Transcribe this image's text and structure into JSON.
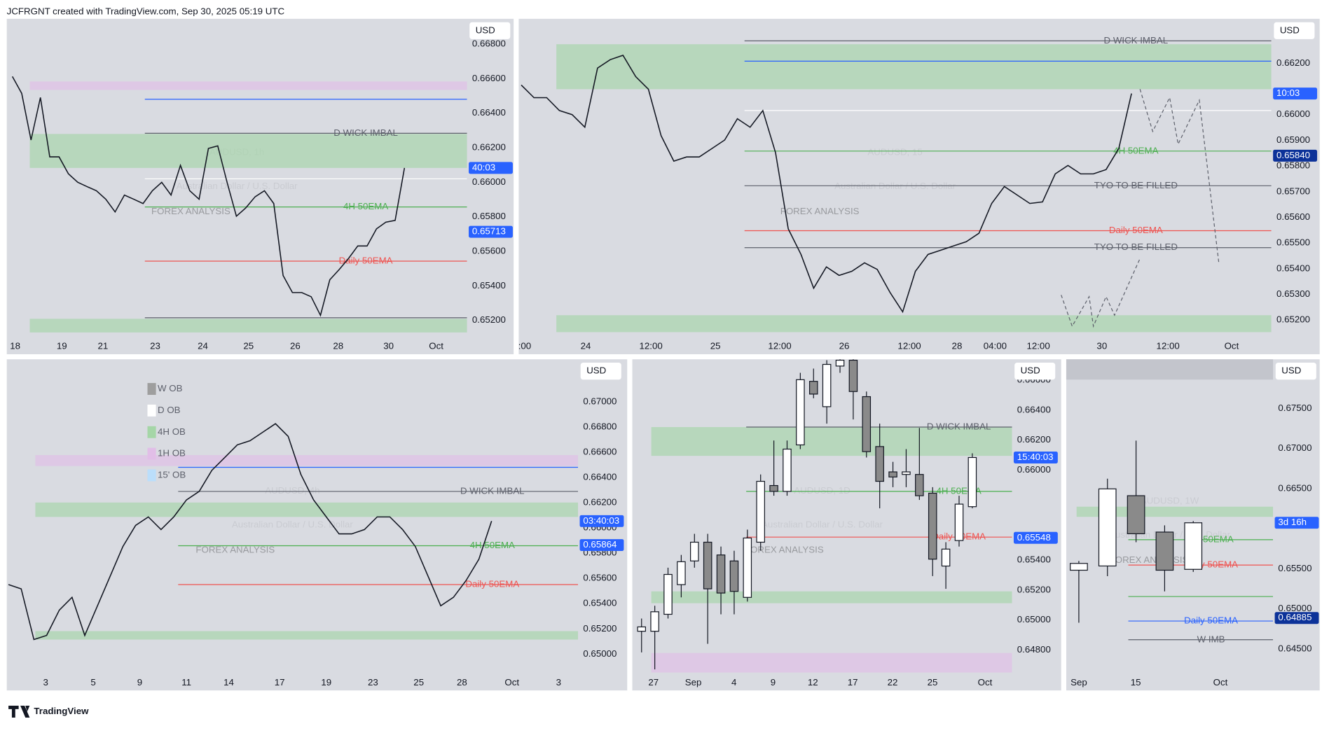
{
  "header": "JCFRGNT created with TradingView.com, Sep 30, 2025 05:19 UTC",
  "footer_brand": "TradingView",
  "chart_data": [
    {
      "type": "line",
      "watermark": "AUDUSD, 1h",
      "subtitle": "Australian Dollar / U.S. Dollar",
      "brand": "FOREX ANALYSIS",
      "currency": "USD",
      "color": "#131722",
      "xlim": [
        -0.6,
        48.7
      ],
      "ylim": [
        0.65102,
        0.66947
      ],
      "xticks": [
        {
          "value": 0.3,
          "label": "18"
        },
        {
          "value": 5.3,
          "label": "19"
        },
        {
          "value": 9.7,
          "label": "21"
        },
        {
          "value": 15.3,
          "label": "23"
        },
        {
          "value": 20.4,
          "label": "24"
        },
        {
          "value": 25.3,
          "label": "25"
        },
        {
          "value": 30.3,
          "label": "26"
        },
        {
          "value": 34.9,
          "label": "28"
        },
        {
          "value": 40.3,
          "label": "30"
        },
        {
          "value": 45.4,
          "label": "Oct"
        }
      ],
      "yticks": [
        {
          "value": 0.668,
          "label": "0.66800"
        },
        {
          "value": 0.666,
          "label": "0.66600"
        },
        {
          "value": 0.664,
          "label": "0.66400"
        },
        {
          "value": 0.662,
          "label": "0.66200"
        },
        {
          "value": 0.66,
          "label": "0.66000"
        },
        {
          "value": 0.658,
          "label": "0.65800"
        },
        {
          "value": 0.656,
          "label": "0.65600"
        },
        {
          "value": 0.654,
          "label": "0.65400"
        },
        {
          "value": 0.652,
          "label": "0.65200"
        }
      ],
      "values": [
        0.66613,
        0.66515,
        0.66245,
        0.66491,
        0.66147,
        0.66147,
        0.66049,
        0.66,
        0.65975,
        0.65951,
        0.65902,
        0.65828,
        0.65926,
        0.65902,
        0.65877,
        0.65951,
        0.66,
        0.65926,
        0.66098,
        0.65951,
        0.65902,
        0.66196,
        0.66211,
        0.66,
        0.65803,
        0.65852,
        0.65916,
        0.65951,
        0.65877,
        0.6546,
        0.65361,
        0.65361,
        0.65337,
        0.65229,
        0.65435,
        0.65494,
        0.65558,
        0.65631,
        0.65631,
        0.6573,
        0.65769,
        0.65779,
        0.66083
      ],
      "zones": [
        {
          "range": [
            0.66535,
            0.66584
          ],
          "color": "#e1bee7"
        },
        {
          "range": [
            0.66083,
            0.6628
          ],
          "color": "#a5d6a7"
        },
        {
          "range": [
            0.6513,
            0.65209
          ],
          "color": "#a5d6a7"
        }
      ],
      "levels": [
        {
          "label": "D WICK IMBAL",
          "value": 0.66284,
          "color": "#5d606b"
        },
        {
          "label": "4H 50EMA",
          "value": 0.65857,
          "color": "#4caf50"
        },
        {
          "label": "Daily 50EMA",
          "value": 0.65543,
          "color": "#ef5350"
        },
        {
          "value": 0.66481,
          "color": "#2962ff"
        },
        {
          "value": 0.6602,
          "color": "#ffffff"
        },
        {
          "value": 0.65215,
          "color": "#5d606b"
        }
      ],
      "price_labels": [
        {
          "value": 0.65713,
          "label": "0.65713",
          "color": "#2962ff"
        }
      ],
      "countdown": "40:03"
    },
    {
      "type": "line",
      "watermark": "AUDUSD, 15",
      "subtitle": "Australian Dollar / U.S. Dollar",
      "brand": "FOREX ANALYSIS",
      "currency": "USD",
      "color": "#131722",
      "xlim": [
        -0.2,
        59
      ],
      "ylim": [
        0.65133,
        0.66373
      ],
      "xticks": [
        {
          "value": 0.27,
          "label": ":00"
        },
        {
          "value": 5.07,
          "label": "24"
        },
        {
          "value": 10.2,
          "label": "12:00"
        },
        {
          "value": 15.27,
          "label": "25"
        },
        {
          "value": 20.33,
          "label": "12:00"
        },
        {
          "value": 25.4,
          "label": "26"
        },
        {
          "value": 30.53,
          "label": "12:00"
        },
        {
          "value": 34.27,
          "label": "28"
        },
        {
          "value": 37.27,
          "label": "04:00"
        },
        {
          "value": 40.67,
          "label": "12:00"
        },
        {
          "value": 45.67,
          "label": "30"
        },
        {
          "value": 50.87,
          "label": "12:00"
        },
        {
          "value": 55.87,
          "label": "Oct"
        }
      ],
      "yticks": [
        {
          "value": 0.662,
          "label": "0.66200"
        },
        {
          "value": 0.66,
          "label": "0.66000"
        },
        {
          "value": 0.659,
          "label": "0.65900"
        },
        {
          "value": 0.658,
          "label": "0.65800"
        },
        {
          "value": 0.657,
          "label": "0.65700"
        },
        {
          "value": 0.656,
          "label": "0.65600"
        },
        {
          "value": 0.655,
          "label": "0.65500"
        },
        {
          "value": 0.654,
          "label": "0.65400"
        },
        {
          "value": 0.653,
          "label": "0.65300"
        },
        {
          "value": 0.652,
          "label": "0.65200"
        }
      ],
      "values": [
        0.66115,
        0.66066,
        0.66066,
        0.66016,
        0.66,
        0.65951,
        0.66181,
        0.66214,
        0.66231,
        0.66148,
        0.66099,
        0.65918,
        0.65819,
        0.65835,
        0.65835,
        0.65868,
        0.65901,
        0.65984,
        0.65951,
        0.66016,
        0.65852,
        0.65555,
        0.65456,
        0.65324,
        0.65407,
        0.65374,
        0.6539,
        0.65423,
        0.65397,
        0.65308,
        0.65232,
        0.6539,
        0.65456,
        0.65472,
        0.65489,
        0.65505,
        0.65538,
        0.65654,
        0.6572,
        0.65687,
        0.65654,
        0.6566,
        0.65769,
        0.65802,
        0.65769,
        0.65769,
        0.65786,
        0.65868,
        0.66082
      ],
      "zones": [
        {
          "range": [
            0.66099,
            0.66274
          ],
          "color": "#a5d6a7"
        },
        {
          "range": [
            0.65153,
            0.65219
          ],
          "color": "#a5d6a7"
        }
      ],
      "levels": [
        {
          "label": "D WICK IMBAL",
          "value": 0.66287,
          "color": "#5d606b"
        },
        {
          "label": "4H 50EMA",
          "value": 0.65858,
          "color": "#4caf50"
        },
        {
          "label": "Daily 50EMA",
          "value": 0.65548,
          "color": "#ef5350"
        },
        {
          "label": "TYO TO BE  FILLED",
          "value": 0.65723,
          "color": "#5d606b"
        },
        {
          "label": "TYO TO BE  FILLED",
          "value": 0.65482,
          "color": "#5d606b"
        },
        {
          "value": 0.66208,
          "color": "#2962ff"
        },
        {
          "value": 0.66016,
          "color": "#ffffff"
        }
      ],
      "price_labels": [
        {
          "value": 0.6584,
          "label": "0.65840",
          "color": "#0c3299"
        }
      ],
      "countdown": "10:03"
    },
    {
      "type": "line",
      "watermark": "AUDUSD, 4h",
      "subtitle": "Australian Dollar / U.S. Dollar",
      "brand": "FOREX ANALYSIS",
      "currency": "USD",
      "color": "#131722",
      "xlim": [
        -0.13,
        44.8
      ],
      "ylim": [
        0.64846,
        0.67336
      ],
      "xticks": [
        {
          "value": 2.93,
          "label": "3"
        },
        {
          "value": 6.67,
          "label": "5"
        },
        {
          "value": 10.33,
          "label": "9"
        },
        {
          "value": 14,
          "label": "11"
        },
        {
          "value": 17.33,
          "label": "14"
        },
        {
          "value": 21.33,
          "label": "17"
        },
        {
          "value": 25,
          "label": "19"
        },
        {
          "value": 28.67,
          "label": "23"
        },
        {
          "value": 32.27,
          "label": "25"
        },
        {
          "value": 35.67,
          "label": "28"
        },
        {
          "value": 39.6,
          "label": "Oct"
        },
        {
          "value": 43.27,
          "label": "3"
        }
      ],
      "yticks": [
        {
          "value": 0.67,
          "label": "0.67000"
        },
        {
          "value": 0.668,
          "label": "0.66800"
        },
        {
          "value": 0.666,
          "label": "0.66600"
        },
        {
          "value": 0.664,
          "label": "0.66400"
        },
        {
          "value": 0.662,
          "label": "0.66200"
        },
        {
          "value": 0.66,
          "label": "0.66000"
        },
        {
          "value": 0.658,
          "label": "0.65800"
        },
        {
          "value": 0.656,
          "label": "0.65600"
        },
        {
          "value": 0.654,
          "label": "0.65400"
        },
        {
          "value": 0.652,
          "label": "0.65200"
        },
        {
          "value": 0.65,
          "label": "0.65000"
        }
      ],
      "values": [
        0.65551,
        0.65517,
        0.65115,
        0.65148,
        0.65349,
        0.6545,
        0.65148,
        0.65383,
        0.65618,
        0.65853,
        0.6602,
        0.66087,
        0.65987,
        0.66087,
        0.66222,
        0.66289,
        0.66457,
        0.66557,
        0.66658,
        0.66691,
        0.66758,
        0.66826,
        0.66725,
        0.66423,
        0.66222,
        0.66087,
        0.65953,
        0.65953,
        0.65987,
        0.66087,
        0.66087,
        0.65987,
        0.65853,
        0.65618,
        0.65383,
        0.6545,
        0.65584,
        0.65752,
        0.66054
      ],
      "legend": [
        {
          "name": "W OB",
          "color": "#9e9e9e"
        },
        {
          "name": "D OB",
          "color": "#ffffff"
        },
        {
          "name": "4H OB",
          "color": "#a5d6a7"
        },
        {
          "name": "1H OB",
          "color": "#e1bee7"
        },
        {
          "name": "15' OB",
          "color": "#bbdefb"
        }
      ],
      "zones": [
        {
          "range": [
            0.6649,
            0.66577
          ],
          "color": "#e1bee7"
        },
        {
          "range": [
            0.66087,
            0.66201
          ],
          "color": "#a5d6a7"
        },
        {
          "range": [
            0.65115,
            0.65182
          ],
          "color": "#a5d6a7"
        }
      ],
      "levels": [
        {
          "label": "D WICK IMBAL",
          "value": 0.66289,
          "color": "#5d606b"
        },
        {
          "label": "4H 50EMA",
          "value": 0.65859,
          "color": "#4caf50"
        },
        {
          "label": "Daily 50EMA",
          "value": 0.65551,
          "color": "#ef5350"
        },
        {
          "value": 0.6648,
          "color": "#2962ff"
        }
      ],
      "price_labels": [
        {
          "value": 0.65864,
          "label": "0.65864",
          "color": "#2962ff"
        }
      ],
      "countdown": "03:40:03"
    },
    {
      "type": "candlestick",
      "watermark": "AUDUSD, 1D",
      "subtitle": "Australian Dollar / U.S. Dollar",
      "brand": "FOREX ANALYSIS",
      "currency": "USD",
      "up_color": "#ffffff",
      "down_color": "#8a8a8a",
      "xlim": [
        -0.7,
        28
      ],
      "ylim": [
        0.64643,
        0.66739
      ],
      "xticks": [
        {
          "value": 0.9,
          "label": "27"
        },
        {
          "value": 3.91,
          "label": "Sep"
        },
        {
          "value": 6.99,
          "label": "4"
        },
        {
          "value": 9.94,
          "label": "9"
        },
        {
          "value": 12.95,
          "label": "12"
        },
        {
          "value": 15.96,
          "label": "17"
        },
        {
          "value": 18.97,
          "label": "22"
        },
        {
          "value": 21.99,
          "label": "25"
        },
        {
          "value": 25.96,
          "label": "Oct"
        }
      ],
      "yticks": [
        {
          "value": 0.666,
          "label": "0.66600"
        },
        {
          "value": 0.664,
          "label": "0.66400"
        },
        {
          "value": 0.662,
          "label": "0.66200"
        },
        {
          "value": 0.66,
          "label": "0.66000"
        },
        {
          "value": 0.654,
          "label": "0.65400"
        },
        {
          "value": 0.652,
          "label": "0.65200"
        },
        {
          "value": 0.65,
          "label": "0.65000"
        },
        {
          "value": 0.648,
          "label": "0.64800"
        }
      ],
      "open": [
        0.64925,
        0.64925,
        0.65038,
        0.65236,
        0.65394,
        0.65519,
        0.65434,
        0.65394,
        0.65151,
        0.65519,
        0.65897,
        0.65858,
        0.66168,
        0.66592,
        0.66423,
        0.66694,
        0.66733,
        0.6649,
        0.66157,
        0.65988,
        0.65971,
        0.65971,
        0.65846,
        0.6536,
        0.6553,
        0.65756
      ],
      "high": [
        0.6501,
        0.65095,
        0.65349,
        0.65434,
        0.65575,
        0.65575,
        0.6549,
        0.65462,
        0.65603,
        0.65971,
        0.66197,
        0.66197,
        0.66649,
        0.66677,
        0.66733,
        0.66762,
        0.66762,
        0.66524,
        0.6631,
        0.66055,
        0.6614,
        0.66281,
        0.65886,
        0.65519,
        0.65829,
        0.66112
      ],
      "low": [
        0.64784,
        0.64671,
        0.6501,
        0.65151,
        0.65349,
        0.64841,
        0.65038,
        0.65038,
        0.65123,
        0.65462,
        0.65829,
        0.65829,
        0.6614,
        0.66479,
        0.6631,
        0.66649,
        0.66338,
        0.66084,
        0.65745,
        0.65886,
        0.65886,
        0.65801,
        0.65293,
        0.65208,
        0.6549,
        0.65745
      ],
      "close": [
        0.64954,
        0.65055,
        0.65304,
        0.65389,
        0.65519,
        0.65208,
        0.6518,
        0.65191,
        0.65547,
        0.65925,
        0.65858,
        0.6614,
        0.66603,
        0.66507,
        0.66705,
        0.66733,
        0.66524,
        0.66123,
        0.65925,
        0.65954,
        0.65988,
        0.65829,
        0.65406,
        0.65473,
        0.65773,
        0.66084
      ],
      "zones": [
        {
          "range": [
            0.66095,
            0.66287
          ],
          "color": "#a5d6a7"
        },
        {
          "range": [
            0.65112,
            0.65191
          ],
          "color": "#a5d6a7"
        },
        {
          "range": [
            0.6465,
            0.6478
          ],
          "color": "#e1bee7"
        }
      ],
      "levels": [
        {
          "label": "D WICK IMBAL",
          "value": 0.66287,
          "color": "#5d606b"
        },
        {
          "label": "4H 50EMA",
          "value": 0.65858,
          "color": "#4caf50"
        },
        {
          "label": "Daily 50EMA",
          "value": 0.65553,
          "color": "#ef5350"
        }
      ],
      "price_labels": [
        {
          "value": 0.65548,
          "label": "0.65548",
          "color": "#2962ff"
        }
      ],
      "countdown": "15:40:03"
    },
    {
      "type": "candlestick",
      "watermark": "AUDUSD, 1W",
      "subtitle": "Australian Dollar / U.S. Dollar",
      "brand": "FOREX ANALYSIS",
      "currency": "USD",
      "up_color": "#ffffff",
      "down_color": "#8a8a8a",
      "xlim": [
        -0.44,
        6.79
      ],
      "ylim": [
        0.64192,
        0.67859
      ],
      "xticks": [
        {
          "value": 0,
          "label": "Sep"
        },
        {
          "value": 1.99,
          "label": "15"
        },
        {
          "value": 4.95,
          "label": "Oct"
        }
      ],
      "yticks": [
        {
          "value": 0.675,
          "label": "0.67500"
        },
        {
          "value": 0.67,
          "label": "0.67000"
        },
        {
          "value": 0.665,
          "label": "0.66500"
        },
        {
          "value": 0.655,
          "label": "0.65500"
        },
        {
          "value": 0.65,
          "label": "0.65000"
        },
        {
          "value": 0.645,
          "label": "0.64500"
        }
      ],
      "open": [
        0.65481,
        0.65534,
        0.66411,
        0.65957,
        0.65492
      ],
      "high": [
        0.65597,
        0.66623,
        0.67098,
        0.66041,
        0.66094
      ],
      "low": [
        0.64826,
        0.65407,
        0.6583,
        0.65217,
        0.6546
      ],
      "close": [
        0.65566,
        0.66496,
        0.65936,
        0.65481,
        0.66073
      ],
      "zones": [
        {
          "range": [
            0.66147,
            0.66274
          ],
          "color": "#a5d6a7"
        }
      ],
      "levels": [
        {
          "label": "4H 50EMA",
          "value": 0.65862,
          "color": "#4caf50"
        },
        {
          "label": "Daily 50EMA",
          "value": 0.65545,
          "color": "#ef5350"
        },
        {
          "label": "Daily 50EMA",
          "value": 0.64847,
          "color": "#2962ff"
        },
        {
          "label": "W IMB",
          "value": 0.64614,
          "color": "#5d606b"
        },
        {
          "value": 0.65153,
          "color": "#4caf50"
        }
      ],
      "price_labels": [
        {
          "value": 0.64885,
          "label": "0.64885",
          "color": "#0c3299"
        }
      ],
      "countdown": "3d 16h"
    }
  ]
}
